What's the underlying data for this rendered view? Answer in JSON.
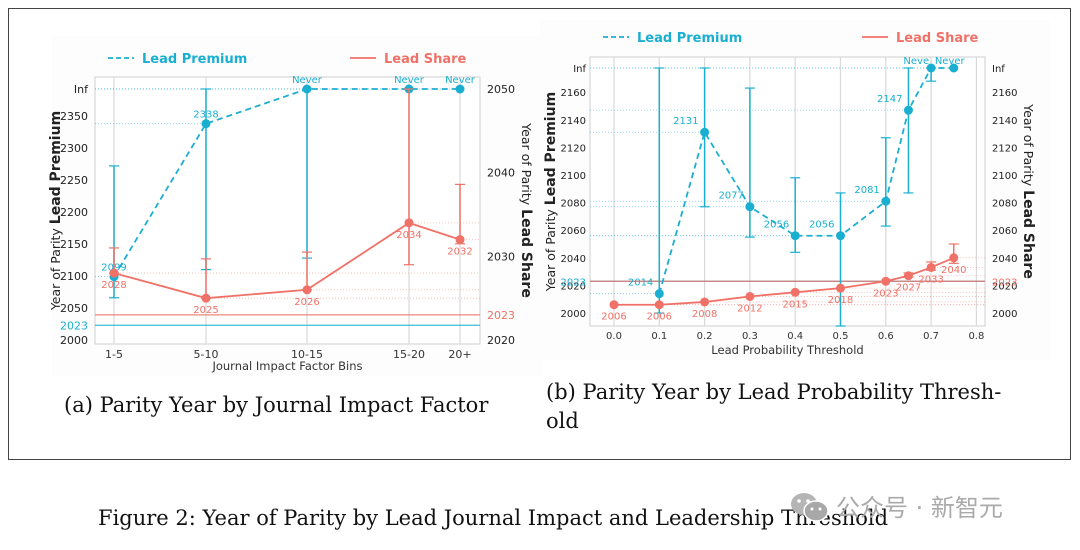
{
  "figure_caption": "Figure 2: Year of Parity by Lead Journal Impact and Leadership Threshold",
  "watermark": {
    "icon": "wechat-icon",
    "text": "公众号 · 新智元"
  },
  "colors": {
    "premium": "#1AAFD0",
    "share": "#F07167",
    "grid": "#d9d9d9"
  },
  "chart_data": [
    {
      "id": "a",
      "type": "line",
      "caption": "(a) Parity Year by Journal Impact Factor",
      "xlabel": "Journal Impact Factor Bins",
      "ylabel_left": {
        "prefix": "Year of Parity ",
        "bold": "Lead Premium"
      },
      "ylabel_right": {
        "prefix": "Year of Parity ",
        "bold": "Lead Share"
      },
      "legend": [
        {
          "name": "Lead Premium",
          "style": "dashed"
        },
        {
          "name": "Lead Share",
          "style": "solid"
        }
      ],
      "legend_position": "top",
      "categories": [
        "1-5",
        "5-10",
        "10-15",
        "15-20",
        "20+"
      ],
      "left_ticks": [
        "2000",
        "2050",
        "2100",
        "2150",
        "2200",
        "2250",
        "2300",
        "2350",
        "Inf"
      ],
      "left_ylim": [
        2000,
        2380
      ],
      "right_ticks": [
        "2020",
        "2030",
        "2040",
        "2050"
      ],
      "right_ylim": [
        2020,
        2050
      ],
      "series": [
        {
          "name": "Lead Premium",
          "axis": "left",
          "values": [
            2099,
            2338,
            "Inf",
            "Inf",
            "Inf"
          ],
          "labels": [
            "2099",
            "2338",
            "Never",
            "Never",
            "Never"
          ],
          "err_low": [
            2066,
            2110,
            2128,
            null,
            null
          ],
          "err_high": [
            2272,
            "Inf",
            "Inf",
            null,
            null
          ]
        },
        {
          "name": "Lead Share",
          "axis": "right",
          "values": [
            2028,
            2025,
            2026,
            2034,
            2032
          ],
          "labels": [
            "2028",
            "2025",
            "2026",
            "2034",
            "2032"
          ],
          "err_low": [
            2028,
            2025,
            2026,
            2029,
            2031.5
          ],
          "err_high": [
            2031,
            2029.7,
            2030.5,
            2050,
            2038.6
          ]
        }
      ],
      "reference_lines": [
        {
          "series": "Lead Premium",
          "value": 2023,
          "label": "2023"
        },
        {
          "series": "Lead Share",
          "value": 2023,
          "label": "2023"
        }
      ],
      "grid": true
    },
    {
      "id": "b",
      "type": "line",
      "caption": "(b) Parity Year by Lead Probability Thresh-old",
      "caption_lines": [
        "(b) Parity Year by Lead Probability Thresh-",
        "old"
      ],
      "xlabel": "Lead Probability Threshold",
      "ylabel_left": {
        "prefix": "Year of Parity ",
        "bold": "Lead Premium"
      },
      "ylabel_right": {
        "prefix": "Year of Parity ",
        "bold": "Lead Share"
      },
      "legend": [
        {
          "name": "Lead Premium",
          "style": "dashed"
        },
        {
          "name": "Lead Share",
          "style": "solid"
        }
      ],
      "legend_position": "top",
      "x_ticks": [
        "0.0",
        "0.1",
        "0.2",
        "0.3",
        "0.4",
        "0.5",
        "0.6",
        "0.7",
        "0.8"
      ],
      "xlim": [
        -0.05,
        0.82
      ],
      "left_ticks": [
        "2000",
        "2020",
        "2040",
        "2060",
        "2080",
        "2100",
        "2120",
        "2140",
        "2160",
        "Inf"
      ],
      "left_ylim": [
        1990,
        2180
      ],
      "right_ticks": [
        "2000",
        "2020",
        "2040",
        "2060",
        "2080",
        "2100",
        "2120",
        "2140",
        "2160",
        "Inf"
      ],
      "right_ylim": [
        1990,
        2180
      ],
      "series": [
        {
          "name": "Lead Premium",
          "axis": "left",
          "x": [
            0.1,
            0.2,
            0.3,
            0.4,
            0.5,
            0.6,
            0.65,
            0.7,
            0.75
          ],
          "values": [
            2014,
            2131,
            2077,
            2056,
            2056,
            2081,
            2147,
            "Inf",
            "Inf"
          ],
          "labels": [
            "2014",
            "2131",
            "2077",
            "2056",
            "2056",
            "2081",
            "2147",
            "Neve",
            "Never"
          ],
          "err_low": [
            2000,
            2077,
            2055,
            2044,
            1990,
            2063,
            2087,
            2168,
            null
          ],
          "err_high": [
            "Inf",
            "Inf",
            2163,
            2098,
            2087,
            2127,
            "Inf",
            "Inf",
            null
          ]
        },
        {
          "name": "Lead Share",
          "axis": "right",
          "x": [
            0.0,
            0.1,
            0.2,
            0.3,
            0.4,
            0.5,
            0.6,
            0.65,
            0.7,
            0.75
          ],
          "values": [
            2006,
            2006,
            2008,
            2012,
            2015,
            2018,
            2023,
            2027,
            2033,
            2040
          ],
          "labels": [
            "2006",
            "2006",
            "2008",
            "2012",
            "2015",
            "2018",
            "2023",
            "2027",
            "2033",
            "2040"
          ],
          "err_low": [
            null,
            null,
            null,
            null,
            null,
            null,
            null,
            2026,
            2031,
            2036
          ],
          "err_high": [
            null,
            null,
            null,
            null,
            null,
            null,
            null,
            2029,
            2037,
            2050
          ]
        }
      ],
      "reference_lines": [
        {
          "series": "Lead Premium",
          "value": 2023,
          "label": "2023"
        },
        {
          "series": "Lead Share",
          "value": 2023,
          "label": "2023"
        }
      ],
      "grid": true
    }
  ]
}
